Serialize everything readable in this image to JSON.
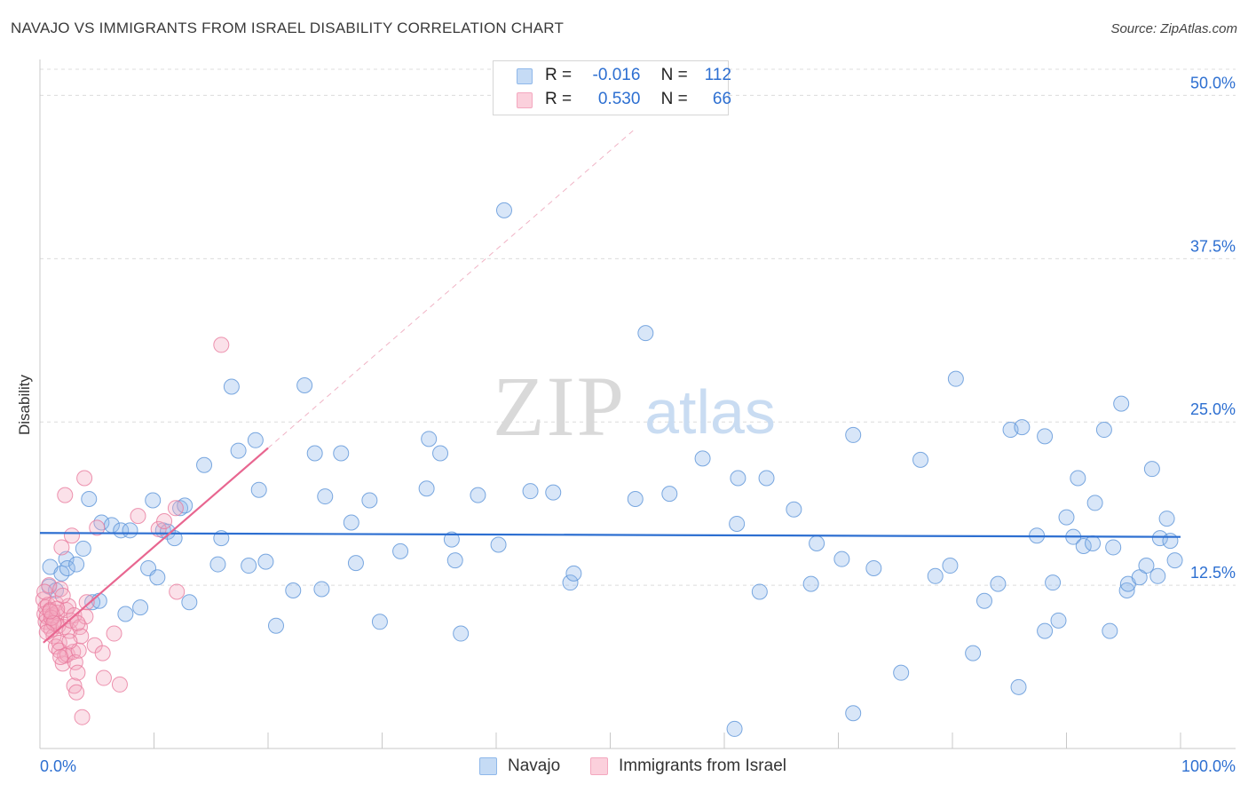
{
  "header": {
    "title": "NAVAJO VS IMMIGRANTS FROM ISRAEL DISABILITY CORRELATION CHART",
    "source": "Source: ZipAtlas.com"
  },
  "watermark": {
    "zip": "ZIP",
    "atlas": "atlas"
  },
  "legend_top": {
    "rows": [
      {
        "r_label": "R =",
        "r_value": "-0.016",
        "n_label": "N =",
        "n_value": "112",
        "color": "#8fb8ea"
      },
      {
        "r_label": "R =",
        "r_value": "0.530",
        "n_label": "N =",
        "n_value": "66",
        "color": "#f4a8bf"
      }
    ]
  },
  "legend_bottom": {
    "items": [
      {
        "label": "Navajo",
        "color": "#8fb8ea"
      },
      {
        "label": "Immigrants from Israel",
        "color": "#f4a8bf"
      }
    ]
  },
  "chart_data": {
    "type": "scatter",
    "title": "NAVAJO VS IMMIGRANTS FROM ISRAEL DISABILITY CORRELATION CHART",
    "xlabel": "",
    "ylabel": "Disability",
    "xlim": [
      0,
      100
    ],
    "ylim": [
      0,
      52
    ],
    "x_tick_labels": {
      "min": "0.0%",
      "max": "100.0%"
    },
    "y_ticks": [
      {
        "value": 12.5,
        "label": "12.5%"
      },
      {
        "value": 25.0,
        "label": "25.0%"
      },
      {
        "value": 37.5,
        "label": "37.5%"
      },
      {
        "value": 50.0,
        "label": "50.0%"
      }
    ],
    "grid": true,
    "series": [
      {
        "name": "Navajo",
        "color": "#8fb8ea",
        "stroke": "#5b93d8",
        "trend": {
          "x0": 0,
          "y0": 16.5,
          "x1": 100,
          "y1": 16.2,
          "color": "#2d6fd1",
          "dashed_extension": false
        },
        "points": [
          [
            0.8,
            12.4
          ],
          [
            0.9,
            13.9
          ],
          [
            1.4,
            12.1
          ],
          [
            1.9,
            13.4
          ],
          [
            2.3,
            14.5
          ],
          [
            2.4,
            13.8
          ],
          [
            3.2,
            14.1
          ],
          [
            3.8,
            15.3
          ],
          [
            4.3,
            19.1
          ],
          [
            4.6,
            11.2
          ],
          [
            5.2,
            11.3
          ],
          [
            5.4,
            17.3
          ],
          [
            6.3,
            17.1
          ],
          [
            7.1,
            16.7
          ],
          [
            7.5,
            10.3
          ],
          [
            7.9,
            16.7
          ],
          [
            8.8,
            10.8
          ],
          [
            9.5,
            13.8
          ],
          [
            9.9,
            19.0
          ],
          [
            10.3,
            13.1
          ],
          [
            10.8,
            16.7
          ],
          [
            11.2,
            16.6
          ],
          [
            11.8,
            16.1
          ],
          [
            12.3,
            18.4
          ],
          [
            12.7,
            18.6
          ],
          [
            13.1,
            11.2
          ],
          [
            14.4,
            21.7
          ],
          [
            15.6,
            14.1
          ],
          [
            15.9,
            16.1
          ],
          [
            16.8,
            27.7
          ],
          [
            17.4,
            22.8
          ],
          [
            18.3,
            14.0
          ],
          [
            18.9,
            23.6
          ],
          [
            19.2,
            19.8
          ],
          [
            19.8,
            14.3
          ],
          [
            20.7,
            9.4
          ],
          [
            22.2,
            12.1
          ],
          [
            23.2,
            27.8
          ],
          [
            24.1,
            22.6
          ],
          [
            24.7,
            12.2
          ],
          [
            25.0,
            19.3
          ],
          [
            26.4,
            22.6
          ],
          [
            27.3,
            17.3
          ],
          [
            27.7,
            14.2
          ],
          [
            28.9,
            19.0
          ],
          [
            29.8,
            9.7
          ],
          [
            31.6,
            15.1
          ],
          [
            33.9,
            19.9
          ],
          [
            34.1,
            23.7
          ],
          [
            35.1,
            22.6
          ],
          [
            36.1,
            16.0
          ],
          [
            36.4,
            14.4
          ],
          [
            36.9,
            8.8
          ],
          [
            38.4,
            19.4
          ],
          [
            40.2,
            15.6
          ],
          [
            40.7,
            41.2
          ],
          [
            43.0,
            19.7
          ],
          [
            45.0,
            19.6
          ],
          [
            46.5,
            12.7
          ],
          [
            46.8,
            13.4
          ],
          [
            52.2,
            19.1
          ],
          [
            53.1,
            31.8
          ],
          [
            55.2,
            19.5
          ],
          [
            58.1,
            22.2
          ],
          [
            60.9,
            1.5
          ],
          [
            61.1,
            17.2
          ],
          [
            61.2,
            20.7
          ],
          [
            63.1,
            12.0
          ],
          [
            63.7,
            20.7
          ],
          [
            66.1,
            18.3
          ],
          [
            67.6,
            12.6
          ],
          [
            68.1,
            15.7
          ],
          [
            70.3,
            14.5
          ],
          [
            71.3,
            24.0
          ],
          [
            73.1,
            13.8
          ],
          [
            75.5,
            5.8
          ],
          [
            77.2,
            22.1
          ],
          [
            78.5,
            13.2
          ],
          [
            79.8,
            14.0
          ],
          [
            80.3,
            28.3
          ],
          [
            81.8,
            7.3
          ],
          [
            82.8,
            11.3
          ],
          [
            84.0,
            12.6
          ],
          [
            85.1,
            24.4
          ],
          [
            85.8,
            4.7
          ],
          [
            86.1,
            24.6
          ],
          [
            87.4,
            16.3
          ],
          [
            88.1,
            23.9
          ],
          [
            88.1,
            9.0
          ],
          [
            88.8,
            12.7
          ],
          [
            89.3,
            9.8
          ],
          [
            90.0,
            17.7
          ],
          [
            90.6,
            16.2
          ],
          [
            91.0,
            20.7
          ],
          [
            91.5,
            15.5
          ],
          [
            92.3,
            15.7
          ],
          [
            92.5,
            18.8
          ],
          [
            93.3,
            24.4
          ],
          [
            93.8,
            9.0
          ],
          [
            94.1,
            15.4
          ],
          [
            94.8,
            26.4
          ],
          [
            95.3,
            12.1
          ],
          [
            95.4,
            12.6
          ],
          [
            96.4,
            13.1
          ],
          [
            97.0,
            14.0
          ],
          [
            97.5,
            21.4
          ],
          [
            98.0,
            13.2
          ],
          [
            98.2,
            16.1
          ],
          [
            98.8,
            17.6
          ],
          [
            99.1,
            15.9
          ],
          [
            99.5,
            14.4
          ],
          [
            71.3,
            2.7
          ]
        ]
      },
      {
        "name": "Immigrants from Israel",
        "color": "#f4a8bf",
        "stroke": "#e8799c",
        "trend": {
          "x0": 0.3,
          "y0": 8.1,
          "x1": 20,
          "y1": 23.0,
          "color": "#e86690",
          "dashed_extension": true,
          "dash_to_x": 52,
          "dash_to_y": 47.3
        },
        "points": [
          [
            0.3,
            11.4
          ],
          [
            0.4,
            10.3
          ],
          [
            0.5,
            10.8
          ],
          [
            0.5,
            9.7
          ],
          [
            0.6,
            10.1
          ],
          [
            0.7,
            9.4
          ],
          [
            0.7,
            11.0
          ],
          [
            0.8,
            12.5
          ],
          [
            0.9,
            10.6
          ],
          [
            1.0,
            9.1
          ],
          [
            1.1,
            10.2
          ],
          [
            1.2,
            8.6
          ],
          [
            1.3,
            9.8
          ],
          [
            1.4,
            11.1
          ],
          [
            1.4,
            7.8
          ],
          [
            1.5,
            10.4
          ],
          [
            1.6,
            9.4
          ],
          [
            1.7,
            8.1
          ],
          [
            1.7,
            7.5
          ],
          [
            1.8,
            12.2
          ],
          [
            1.9,
            15.4
          ],
          [
            2.0,
            6.5
          ],
          [
            2.1,
            9.3
          ],
          [
            2.2,
            7.1
          ],
          [
            2.2,
            19.4
          ],
          [
            2.3,
            10.6
          ],
          [
            2.4,
            7.2
          ],
          [
            2.5,
            10.9
          ],
          [
            2.6,
            9.0
          ],
          [
            2.7,
            9.8
          ],
          [
            2.8,
            16.3
          ],
          [
            2.9,
            7.4
          ],
          [
            3.0,
            10.2
          ],
          [
            3.0,
            4.8
          ],
          [
            3.1,
            6.6
          ],
          [
            3.2,
            4.3
          ],
          [
            3.3,
            5.8
          ],
          [
            3.4,
            7.5
          ],
          [
            3.5,
            9.3
          ],
          [
            3.6,
            8.6
          ],
          [
            3.7,
            2.4
          ],
          [
            3.9,
            20.7
          ],
          [
            4.0,
            10.1
          ],
          [
            4.1,
            11.2
          ],
          [
            4.8,
            7.9
          ],
          [
            5.0,
            16.9
          ],
          [
            5.5,
            7.3
          ],
          [
            5.6,
            5.4
          ],
          [
            6.5,
            8.8
          ],
          [
            7.0,
            4.9
          ],
          [
            8.6,
            17.8
          ],
          [
            10.4,
            16.8
          ],
          [
            10.9,
            17.4
          ],
          [
            11.9,
            18.4
          ],
          [
            12.0,
            12.0
          ],
          [
            15.9,
            30.9
          ],
          [
            1.0,
            10.0
          ],
          [
            1.2,
            9.6
          ],
          [
            0.6,
            8.9
          ],
          [
            2.6,
            8.2
          ],
          [
            3.3,
            9.6
          ],
          [
            1.5,
            10.7
          ],
          [
            0.9,
            10.5
          ],
          [
            2.0,
            11.7
          ],
          [
            1.8,
            7.0
          ],
          [
            0.4,
            12.0
          ]
        ]
      }
    ]
  }
}
